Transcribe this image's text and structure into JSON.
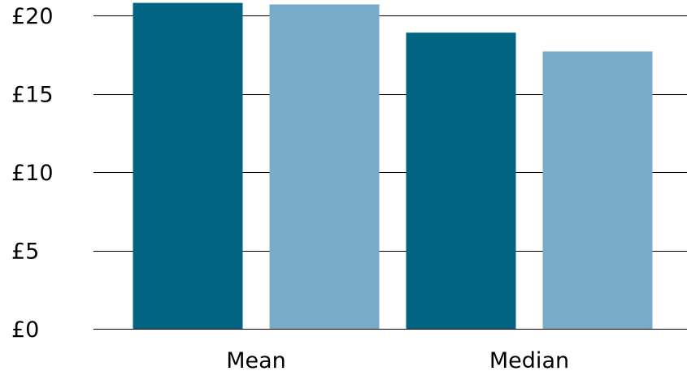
{
  "chart_data": {
    "type": "bar",
    "title": "",
    "xlabel": "",
    "ylabel": "",
    "categories": [
      "Mean",
      "Median"
    ],
    "series": [
      {
        "color": "#006482",
        "values": [
          20.8,
          18.9
        ]
      },
      {
        "color": "#77abc8",
        "values": [
          20.7,
          17.7
        ]
      }
    ],
    "ylim": [
      0,
      20.8
    ],
    "yticks": [
      0,
      5,
      10,
      15,
      20
    ],
    "ytick_labels": [
      "£0",
      "£5",
      "£10",
      "£15",
      "£20"
    ],
    "grid": true,
    "legend": "none"
  }
}
